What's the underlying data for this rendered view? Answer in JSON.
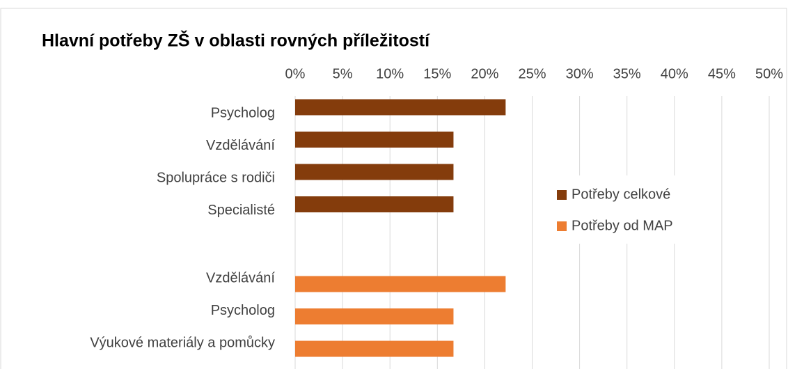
{
  "chart_data": {
    "type": "hbar",
    "title": "Hlavní potřeby ZŠ v oblasti rovných příležitostí",
    "categories": [
      "Psycholog",
      "Vzdělávání",
      "Spolupráce s rodiči",
      "Specialisté",
      null,
      "Vzdělávání",
      "Psycholog",
      "Výukové materiály a pomůcky"
    ],
    "series": [
      {
        "name": "Potřeby celkové",
        "color": "#843c0c",
        "values": [
          22.2,
          16.7,
          16.7,
          16.7,
          null,
          null,
          null,
          null
        ]
      },
      {
        "name": "Potřeby od MAP",
        "color": "#ed7d31",
        "values": [
          null,
          null,
          null,
          null,
          null,
          22.2,
          16.7,
          16.7
        ]
      }
    ],
    "xlim": [
      0,
      50
    ],
    "xticks": [
      {
        "value": 0,
        "label": "0%"
      },
      {
        "value": 5,
        "label": "5%"
      },
      {
        "value": 10,
        "label": "10%"
      },
      {
        "value": 15,
        "label": "15%"
      },
      {
        "value": 20,
        "label": "20%"
      },
      {
        "value": 25,
        "label": "25%"
      },
      {
        "value": 30,
        "label": "30%"
      },
      {
        "value": 35,
        "label": "35%"
      },
      {
        "value": 40,
        "label": "40%"
      },
      {
        "value": 45,
        "label": "45%"
      },
      {
        "value": 50,
        "label": "50%"
      }
    ],
    "grid": true,
    "legend": "right"
  }
}
